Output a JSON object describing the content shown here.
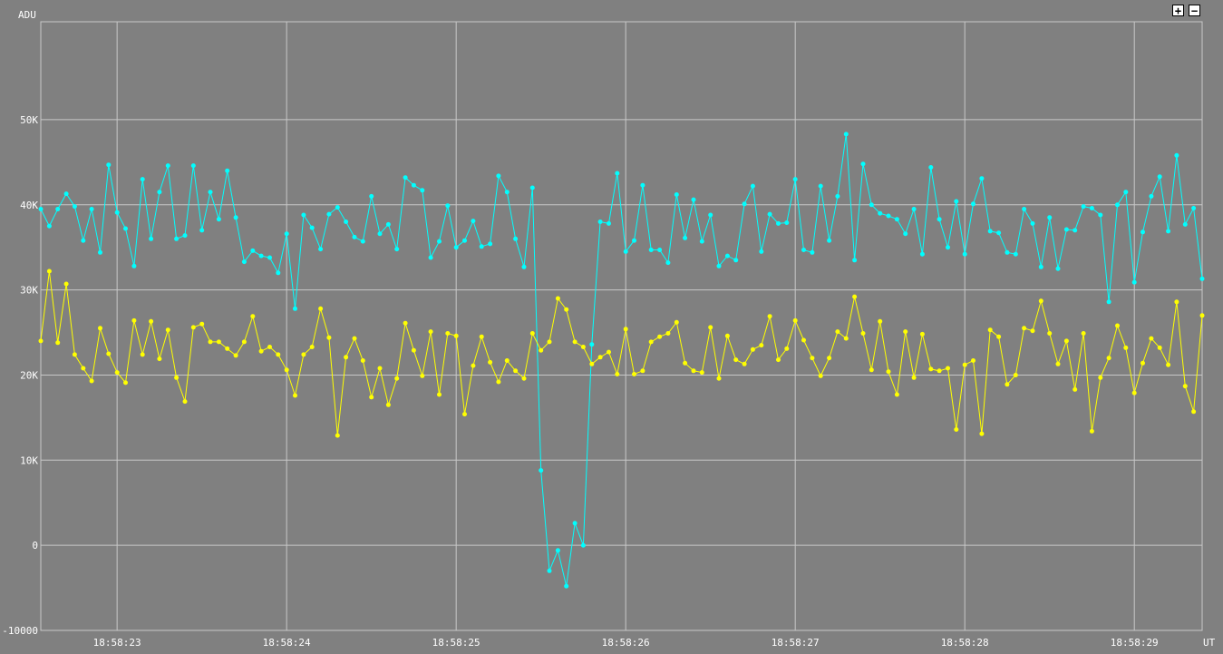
{
  "controls": {
    "zoom_in": "+",
    "zoom_out": "−"
  },
  "chart_data": {
    "type": "line",
    "ylabel": "ADU",
    "xlabel": "UT",
    "ylim": [
      -10000,
      61500
    ],
    "y_ticks": [
      {
        "value": -10000,
        "label": "-10000"
      },
      {
        "value": 0,
        "label": "0"
      },
      {
        "value": 10000,
        "label": "10K"
      },
      {
        "value": 20000,
        "label": "20K"
      },
      {
        "value": 30000,
        "label": "30K"
      },
      {
        "value": 40000,
        "label": "40K"
      },
      {
        "value": 50000,
        "label": "50K"
      }
    ],
    "x_ticks": [
      "18:58:23",
      "18:58:24",
      "18:58:25",
      "18:58:26",
      "18:58:27",
      "18:58:28",
      "18:58:29"
    ],
    "x_range": [
      "18:58:22.55",
      "18:58:29.40"
    ],
    "grid": true,
    "sample_interval_s": 0.05,
    "series": [
      {
        "color": "#00ffff",
        "values": [
          39500,
          37500,
          39500,
          41300,
          39800,
          35800,
          39500,
          34400,
          44700,
          39100,
          37200,
          32800,
          43000,
          36000,
          41500,
          44600,
          36000,
          36400,
          44600,
          37000,
          41500,
          38300,
          44000,
          38500,
          33300,
          34600,
          34000,
          33800,
          32000,
          36600,
          27800,
          38800,
          37300,
          34800,
          38900,
          39700,
          38000,
          36200,
          35700,
          41000,
          36600,
          37700,
          34800,
          43200,
          42300,
          41700,
          33800,
          35700,
          39900,
          35000,
          35800,
          38100,
          35100,
          35400,
          43400,
          41500,
          36000,
          32700,
          42000,
          8800,
          -3000,
          -600,
          -4800,
          2600,
          0,
          23600,
          38000,
          37800,
          43700,
          34500,
          35800,
          42300,
          34700,
          34700,
          33200,
          41200,
          36100,
          40600,
          35700,
          38800,
          32800,
          34000,
          33500,
          40100,
          42200,
          34500,
          38900,
          37800,
          37900,
          43000,
          34700,
          34400,
          42200,
          35800,
          41000,
          48300,
          33500,
          44800,
          40000,
          39000,
          38700,
          38300,
          36600,
          39500,
          34200,
          44400,
          38300,
          35000,
          40400,
          34200,
          40100,
          43100,
          36900,
          36700,
          34400,
          34200,
          39500,
          37800,
          32700,
          38500,
          32500,
          37100,
          37000,
          39800,
          39600,
          38800,
          28600,
          40000,
          41500,
          30900,
          36800,
          41000,
          43300,
          36900,
          45800,
          37700,
          39600,
          31300
        ]
      },
      {
        "color": "#ffff00",
        "values": [
          24000,
          32200,
          23800,
          30700,
          22400,
          20800,
          19300,
          25500,
          22500,
          20300,
          19100,
          26400,
          22400,
          26300,
          21900,
          25300,
          19700,
          16900,
          25600,
          26000,
          23900,
          23900,
          23100,
          22300,
          23900,
          26900,
          22800,
          23300,
          22400,
          20600,
          17600,
          22400,
          23300,
          27800,
          24400,
          12900,
          22100,
          24300,
          21700,
          17400,
          20800,
          16500,
          19600,
          26100,
          22900,
          19900,
          25100,
          17700,
          24900,
          24600,
          15400,
          21100,
          24500,
          21500,
          19200,
          21700,
          20500,
          19600,
          24900,
          22900,
          23900,
          29000,
          27700,
          23900,
          23300,
          21300,
          22100,
          22700,
          20100,
          25400,
          20100,
          20500,
          23900,
          24500,
          24900,
          26200,
          21400,
          20500,
          20300,
          25600,
          19600,
          24600,
          21800,
          21300,
          23000,
          23500,
          26900,
          21800,
          23100,
          26400,
          24100,
          22000,
          19900,
          22000,
          25100,
          24300,
          29200,
          24900,
          20600,
          26300,
          20400,
          17700,
          25100,
          19700,
          24800,
          20700,
          20500,
          20800,
          13600,
          21200,
          21700,
          13100,
          25300,
          24500,
          18900,
          20000,
          25500,
          25200,
          28700,
          24900,
          21300,
          24000,
          18300,
          24900,
          13400,
          19700,
          22000,
          25800,
          23200,
          17900,
          21400,
          24300,
          23200,
          21200,
          28600,
          18700,
          15700,
          27000
        ]
      }
    ]
  }
}
